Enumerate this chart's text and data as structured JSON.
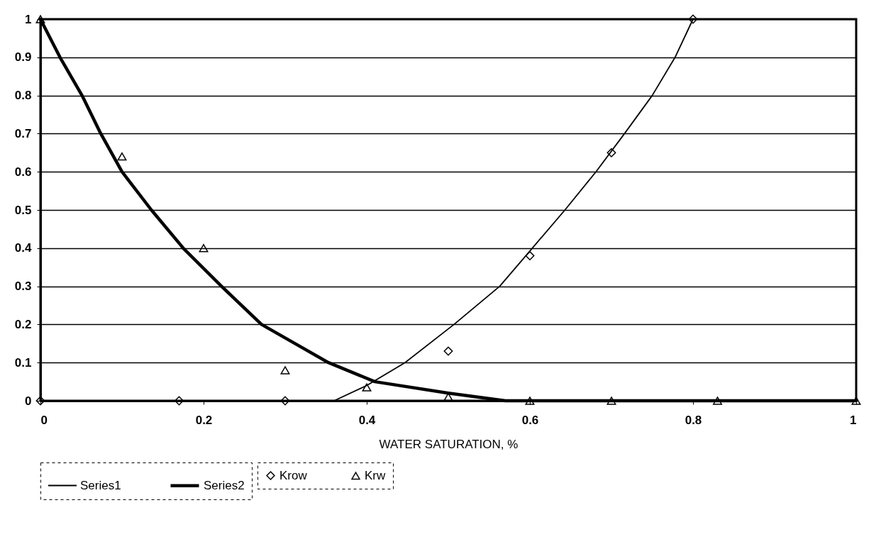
{
  "chart_data": {
    "type": "line",
    "xlabel": "WATER SATURATION, %",
    "xlim": [
      0,
      1
    ],
    "xticks": [
      0,
      0.2,
      0.4,
      0.6,
      0.8,
      1
    ],
    "ylim": [
      0,
      1
    ],
    "yticks": [
      0,
      0.1,
      0.2,
      0.3,
      0.4,
      0.5,
      0.6,
      0.7,
      0.8,
      0.9,
      1
    ],
    "grid": "y",
    "legend": "bottom",
    "series": [
      {
        "name": "Series1",
        "color": "#000000",
        "line_style": "solid",
        "x": [
          0,
          0.1,
          0.2,
          0.3,
          0.36,
          0.4,
          0.447,
          0.507,
          0.563,
          0.603,
          0.643,
          0.681,
          0.716,
          0.75,
          0.778,
          0.8
        ],
        "values": [
          0,
          0,
          0,
          0,
          0,
          0.04,
          0.1,
          0.2,
          0.3,
          0.4,
          0.5,
          0.6,
          0.7,
          0.8,
          0.9,
          1
        ]
      },
      {
        "name": "Series2",
        "color": "#000000",
        "line_style": "solid",
        "x": [
          0,
          0.024,
          0.051,
          0.074,
          0.1,
          0.136,
          0.175,
          0.222,
          0.271,
          0.353,
          0.41,
          0.5,
          0.57,
          0.7,
          0.85,
          1
        ],
        "values": [
          1,
          0.9,
          0.8,
          0.7,
          0.6,
          0.5,
          0.4,
          0.3,
          0.2,
          0.1,
          0.05,
          0.02,
          0,
          0,
          0,
          0
        ]
      },
      {
        "name": "Krow",
        "type": "scatter",
        "color": "#000000",
        "marker": "diamond",
        "x": [
          0,
          0.17,
          0.3,
          0.5,
          0.6,
          0.7,
          0.8
        ],
        "values": [
          0,
          0,
          0,
          0.13,
          0.38,
          0.65,
          1
        ]
      },
      {
        "name": "Krw",
        "type": "scatter",
        "color": "#000000",
        "marker": "triangle",
        "x": [
          0,
          0.1,
          0.2,
          0.3,
          0.4,
          0.5,
          0.6,
          0.7,
          0.83,
          1
        ],
        "values": [
          1,
          0.64,
          0.4,
          0.08,
          0.035,
          0.01,
          0,
          0,
          0,
          0
        ]
      }
    ]
  }
}
